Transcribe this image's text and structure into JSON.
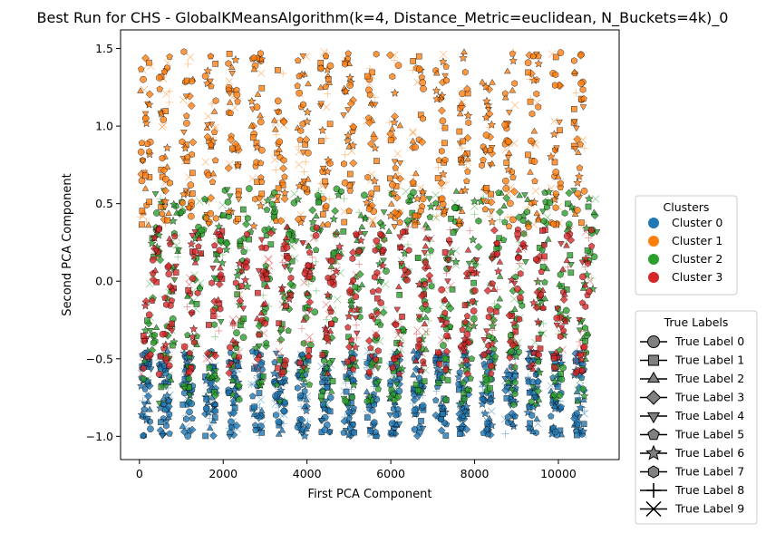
{
  "chart_data": {
    "type": "scatter",
    "title": "Best Run for CHS - GlobalKMeansAlgorithm(k=4, Distance_Metric=euclidean, N_Buckets=4k)_0",
    "xlabel": "First PCA Component",
    "ylabel": "Second PCA Component",
    "xlim": [
      -450,
      11450
    ],
    "ylim": [
      -1.15,
      1.62
    ],
    "xticks": [
      0,
      2000,
      4000,
      6000,
      8000,
      10000
    ],
    "xtick_labels": [
      "0",
      "2000",
      "4000",
      "6000",
      "8000",
      "10000"
    ],
    "yticks": [
      -1.0,
      -0.5,
      0.0,
      0.5,
      1.0,
      1.5
    ],
    "ytick_labels": [
      "−1.0",
      "−0.5",
      "0.0",
      "0.5",
      "1.0",
      "1.5"
    ],
    "grid": false,
    "clusters_legend": {
      "title": "Clusters",
      "placement": "right-middle",
      "entries": [
        {
          "name": "Cluster 0",
          "color": "#1f77b4"
        },
        {
          "name": "Cluster 1",
          "color": "#ff7f0e"
        },
        {
          "name": "Cluster 2",
          "color": "#2ca02c"
        },
        {
          "name": "Cluster 3",
          "color": "#d62728"
        }
      ]
    },
    "labels_legend": {
      "title": "True Labels",
      "placement": "right-bottom",
      "entries": [
        {
          "name": "True Label 0",
          "marker": "circle"
        },
        {
          "name": "True Label 1",
          "marker": "square"
        },
        {
          "name": "True Label 2",
          "marker": "triangle-up"
        },
        {
          "name": "True Label 3",
          "marker": "diamond"
        },
        {
          "name": "True Label 4",
          "marker": "triangle-down"
        },
        {
          "name": "True Label 5",
          "marker": "pentagon"
        },
        {
          "name": "True Label 6",
          "marker": "star"
        },
        {
          "name": "True Label 7",
          "marker": "hexagon"
        },
        {
          "name": "True Label 8",
          "marker": "plus"
        },
        {
          "name": "True Label 9",
          "marker": "x"
        }
      ]
    },
    "clusters_y_range": {
      "Cluster 0": [
        -1.0,
        -0.45
      ],
      "Cluster 1": [
        0.35,
        1.48
      ],
      "Cluster 2": [
        -0.8,
        0.6
      ],
      "Cluster 3": [
        -0.6,
        0.35
      ]
    },
    "band_x_centers": [
      150,
      600,
      1150,
      1700,
      2250,
      2800,
      3350,
      3900,
      4450,
      5000,
      5550,
      6100,
      6650,
      7200,
      7750,
      8300,
      8850,
      9400,
      9950,
      10500
    ],
    "sample_points": [
      {
        "x": 150,
        "y": 1.05,
        "cluster": 1,
        "label": 0
      },
      {
        "x": 600,
        "y": 1.35,
        "cluster": 1,
        "label": 5
      },
      {
        "x": 1700,
        "y": 1.45,
        "cluster": 1,
        "label": 5
      },
      {
        "x": 4450,
        "y": 1.45,
        "cluster": 1,
        "label": 5
      },
      {
        "x": 9400,
        "y": 1.45,
        "cluster": 1,
        "label": 5
      },
      {
        "x": 400,
        "y": 0.2,
        "cluster": 3,
        "label": 4
      },
      {
        "x": 3900,
        "y": 0.25,
        "cluster": 3,
        "label": 4
      },
      {
        "x": 1150,
        "y": -0.1,
        "cluster": 2,
        "label": 2
      },
      {
        "x": 6650,
        "y": 0.15,
        "cluster": 2,
        "label": 1
      },
      {
        "x": 2250,
        "y": -0.85,
        "cluster": 0,
        "label": 3
      },
      {
        "x": 8300,
        "y": -0.9,
        "cluster": 0,
        "label": 9
      },
      {
        "x": 10500,
        "y": -0.75,
        "cluster": 0,
        "label": 8
      }
    ]
  }
}
